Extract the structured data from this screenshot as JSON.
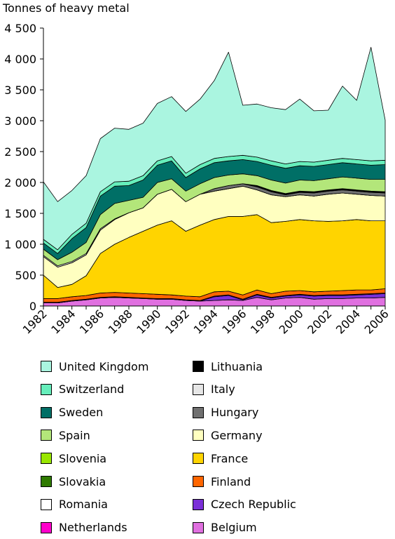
{
  "chart_data": {
    "type": "area",
    "stacked": true,
    "title": "",
    "ylabel": "Tonnes of heavy metal",
    "xlabel": "",
    "ylim": [
      0,
      4500
    ],
    "yticks": [
      0,
      500,
      1000,
      1500,
      2000,
      2500,
      3000,
      3500,
      4000,
      4500
    ],
    "ytick_labels": [
      "0",
      "500",
      "1 000",
      "1 500",
      "2 000",
      "2 500",
      "3 000",
      "3 500",
      "4 000",
      "4 500"
    ],
    "x": [
      1982,
      1983,
      1984,
      1985,
      1986,
      1987,
      1988,
      1989,
      1990,
      1991,
      1992,
      1993,
      1994,
      1995,
      1996,
      1997,
      1998,
      1999,
      2000,
      2001,
      2002,
      2003,
      2004,
      2005,
      2006
    ],
    "xtick_labels": [
      "1982",
      "1984",
      "1986",
      "1988",
      "1990",
      "1992",
      "1994",
      "1996",
      "1998",
      "2000",
      "2002",
      "2004",
      "2006"
    ],
    "grid": false,
    "legend_position": "bottom",
    "series": [
      {
        "name": "Belgium",
        "color": "#e070e0",
        "values": [
          50,
          50,
          80,
          100,
          130,
          140,
          130,
          120,
          110,
          110,
          90,
          80,
          90,
          100,
          90,
          140,
          100,
          130,
          140,
          110,
          120,
          120,
          130,
          130,
          140
        ]
      },
      {
        "name": "Czech Republic",
        "color": "#7b2fd8",
        "values": [
          0,
          0,
          0,
          0,
          0,
          0,
          0,
          0,
          0,
          0,
          0,
          0,
          60,
          70,
          10,
          40,
          30,
          30,
          40,
          50,
          50,
          50,
          50,
          60,
          60
        ]
      },
      {
        "name": "Netherlands",
        "color": "#ff00cc",
        "values": [
          10,
          10,
          10,
          10,
          10,
          10,
          10,
          10,
          10,
          10,
          10,
          10,
          10,
          10,
          10,
          10,
          10,
          10,
          10,
          10,
          10,
          10,
          10,
          10,
          10
        ]
      },
      {
        "name": "Finland",
        "color": "#ff6600",
        "values": [
          60,
          60,
          60,
          60,
          70,
          70,
          70,
          70,
          70,
          60,
          60,
          60,
          70,
          60,
          70,
          70,
          60,
          70,
          60,
          60,
          60,
          70,
          70,
          60,
          70
        ]
      },
      {
        "name": "Romania",
        "color": "#ffffff",
        "values": [
          0,
          0,
          0,
          0,
          0,
          0,
          0,
          0,
          0,
          0,
          0,
          0,
          0,
          0,
          0,
          0,
          0,
          0,
          0,
          0,
          0,
          0,
          0,
          0,
          0
        ]
      },
      {
        "name": "France",
        "color": "#ffd400",
        "values": [
          380,
          180,
          200,
          320,
          640,
          780,
          900,
          1010,
          1120,
          1200,
          1050,
          1160,
          1170,
          1210,
          1270,
          1220,
          1150,
          1130,
          1150,
          1150,
          1130,
          1130,
          1140,
          1120,
          1100
        ]
      },
      {
        "name": "Slovakia",
        "color": "#2f7a00",
        "values": [
          0,
          0,
          0,
          0,
          0,
          0,
          0,
          0,
          0,
          0,
          0,
          0,
          0,
          0,
          0,
          0,
          0,
          0,
          0,
          0,
          0,
          0,
          0,
          0,
          0
        ]
      },
      {
        "name": "Germany",
        "color": "#ffffc0",
        "values": [
          300,
          330,
          350,
          340,
          380,
          400,
          400,
          380,
          500,
          510,
          480,
          500,
          460,
          450,
          490,
          400,
          450,
          400,
          400,
          400,
          440,
          450,
          410,
          410,
          400
        ]
      },
      {
        "name": "Slovenia",
        "color": "#99e600",
        "values": [
          0,
          0,
          0,
          0,
          0,
          0,
          0,
          0,
          0,
          0,
          0,
          0,
          0,
          0,
          0,
          0,
          0,
          0,
          0,
          0,
          0,
          0,
          0,
          0,
          0
        ]
      },
      {
        "name": "Hungary",
        "color": "#707070",
        "values": [
          0,
          0,
          0,
          0,
          0,
          0,
          0,
          0,
          0,
          0,
          0,
          0,
          40,
          50,
          40,
          50,
          50,
          30,
          40,
          50,
          50,
          50,
          50,
          50,
          50
        ]
      },
      {
        "name": "Lithuania",
        "color": "#000000",
        "values": [
          0,
          0,
          0,
          0,
          0,
          0,
          0,
          0,
          0,
          0,
          0,
          0,
          0,
          0,
          0,
          20,
          20,
          20,
          20,
          20,
          20,
          20,
          20,
          20,
          20
        ]
      },
      {
        "name": "Italy",
        "color": "#e6e6e6",
        "values": [
          20,
          20,
          20,
          20,
          20,
          10,
          0,
          0,
          0,
          0,
          0,
          0,
          0,
          0,
          0,
          0,
          0,
          0,
          0,
          0,
          0,
          0,
          0,
          0,
          0
        ]
      },
      {
        "name": "Spain",
        "color": "#b3e67a",
        "values": [
          100,
          100,
          150,
          180,
          230,
          250,
          200,
          170,
          190,
          170,
          170,
          170,
          180,
          170,
          160,
          160,
          170,
          170,
          180,
          180,
          180,
          190,
          190,
          190,
          200
        ]
      },
      {
        "name": "Sweden",
        "color": "#006f66",
        "values": [
          100,
          100,
          220,
          240,
          300,
          280,
          240,
          280,
          280,
          290,
          220,
          240,
          240,
          230,
          230,
          230,
          240,
          240,
          230,
          230,
          230,
          230,
          230,
          230,
          240
        ]
      },
      {
        "name": "Switzerland",
        "color": "#66eebb",
        "values": [
          60,
          60,
          70,
          70,
          70,
          70,
          70,
          70,
          70,
          70,
          70,
          70,
          70,
          70,
          70,
          70,
          70,
          70,
          70,
          70,
          70,
          70,
          70,
          70,
          70
        ]
      },
      {
        "name": "United Kingdom",
        "color": "#aaf5e0",
        "values": [
          930,
          780,
          710,
          770,
          860,
          870,
          840,
          850,
          930,
          970,
          1000,
          1060,
          1260,
          1690,
          810,
          860,
          860,
          880,
          1010,
          830,
          810,
          1170,
          960,
          1840,
          650
        ]
      }
    ],
    "legend_columns": [
      [
        "United Kingdom",
        "Switzerland",
        "Sweden",
        "Spain",
        "Slovenia",
        "Slovakia",
        "Romania",
        "Netherlands"
      ],
      [
        "Lithuania",
        "Italy",
        "Hungary",
        "Germany",
        "France",
        "Finland",
        "Czech Republic",
        "Belgium"
      ]
    ]
  }
}
